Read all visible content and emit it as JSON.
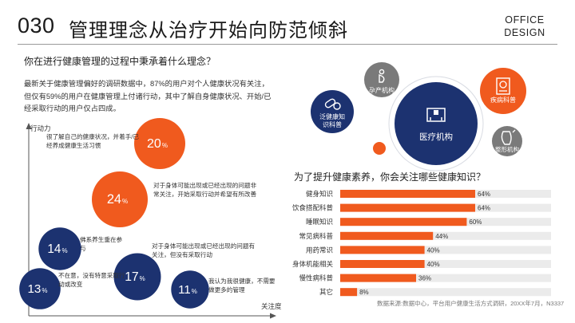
{
  "page": {
    "number": "030",
    "title": "管理理念从治疗开始向防范倾斜",
    "brand_line1": "OFFICE",
    "brand_line2": "DESIGN"
  },
  "section_left": {
    "question": "你在进行健康管理的过程中秉承着什么理念？",
    "paragraph": "最新关于健康管理偏好的调研数据中，87%的用户对个人健康状况有关注，但仅有59%的用户在健康管理上付诸行动，其中了解自身健康状况、开始/已经采取行动的用户仅占四成。"
  },
  "bubbles": {
    "icons": {
      "prenatal": "pregnancy-icon",
      "general": "pills-icon",
      "medical": "hospital-icon",
      "chronic": "medical-record-icon",
      "cosmetic": "face-icon"
    },
    "items": [
      {
        "key": "prenatal",
        "label": "孕产机构"
      },
      {
        "key": "general",
        "label": "泛健康知识科普"
      },
      {
        "key": "medical",
        "label": "医疗机构"
      },
      {
        "key": "chronic",
        "label": "疾病科普"
      },
      {
        "key": "cosmetic",
        "label": "整形机构"
      }
    ]
  },
  "section_right": {
    "question": "为了提升健康素养，你会关注哪些健康知识？"
  },
  "source": "数据来源:数据中心，平台用户健康生活方式调研，20XX年7月，N3337",
  "colors": {
    "orange": "#f05a1e",
    "navy": "#1c3270",
    "gray": "#7a7a7a",
    "track": "#ebebeb",
    "axis": "#555555"
  },
  "chart_data": [
    {
      "type": "scatter",
      "name": "health-concept-matrix",
      "xlabel": "关注度",
      "ylabel": "行动力",
      "points": [
        {
          "value": 20,
          "label": "20%",
          "color": "orange",
          "text": "很了解自己的健康状况，并着手/已经养成健康生活习惯"
        },
        {
          "value": 24,
          "label": "24%",
          "color": "orange",
          "text": "对于身体可能出现或已经出现的问题非常关注，开始采取行动并希望有所改善"
        },
        {
          "value": 14,
          "label": "14%",
          "color": "navy",
          "text": "佛系养生重在参与"
        },
        {
          "value": 17,
          "label": "17%",
          "color": "navy",
          "text": "对于身体可能出现或已经出现的问题有关注，但没有采取行动"
        },
        {
          "value": 13,
          "label": "13%",
          "color": "navy",
          "text": "不在意，没有特意采取行动或改变"
        },
        {
          "value": 11,
          "label": "11%",
          "color": "navy",
          "text": "我认为我很健康，不需要做更多的管理"
        }
      ]
    },
    {
      "type": "bar",
      "name": "health-knowledge-interest",
      "title": "为了提升健康素养，你会关注哪些健康知识？",
      "orientation": "horizontal",
      "xlim": [
        0,
        100
      ],
      "categories": [
        "健身知识",
        "饮食搭配科普",
        "睡眠知识",
        "常见病科普",
        "用药常识",
        "身体机能相关",
        "慢性病科普",
        "其它"
      ],
      "values": [
        64,
        64,
        60,
        44,
        40,
        40,
        36,
        8
      ],
      "labels": [
        "64%",
        "64%",
        "60%",
        "44%",
        "40%",
        "40%",
        "36%",
        "8%"
      ]
    }
  ]
}
